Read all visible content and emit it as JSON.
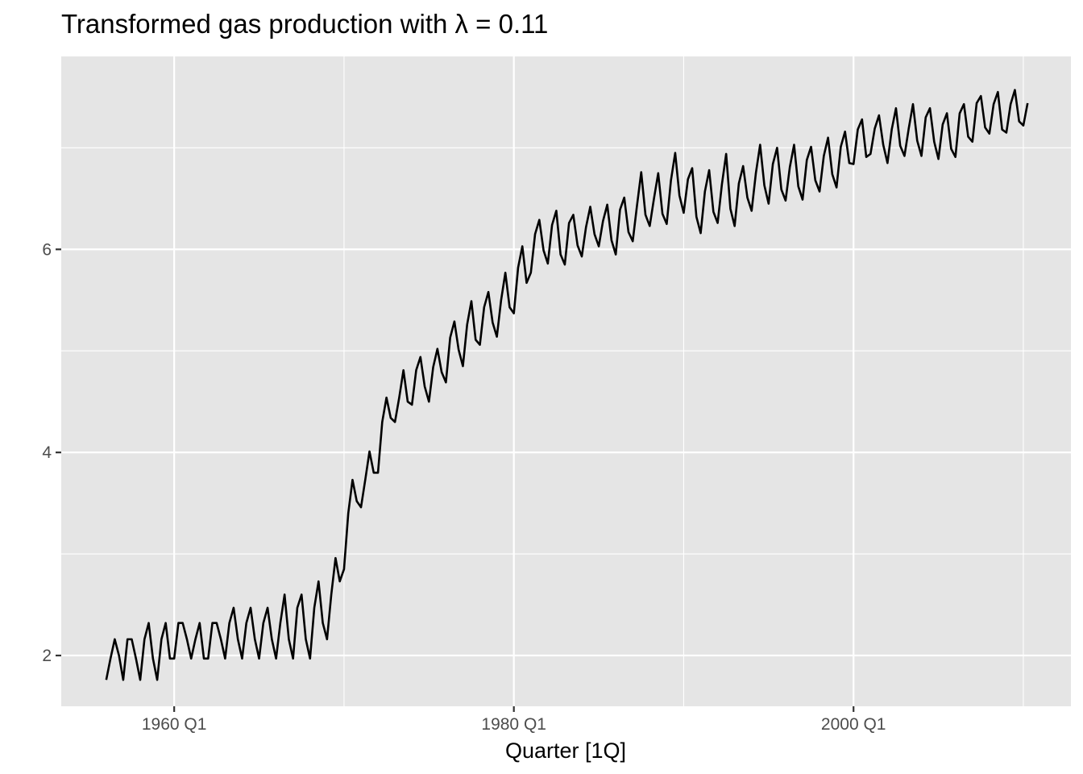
{
  "chart_data": {
    "type": "line",
    "title": "Transformed gas production with λ = 0.11",
    "xlabel": "Quarter [1Q]",
    "ylabel": "",
    "x_start": 1956.0,
    "x_step": 0.25,
    "xlim": [
      1953.35,
      2012.8
    ],
    "ylim": [
      1.5,
      7.9
    ],
    "x_major_ticks": [
      1960,
      1980,
      2000
    ],
    "x_tick_labels": [
      "1960 Q1",
      "1980 Q1",
      "2000 Q1"
    ],
    "x_minor_ticks": [
      1970,
      1990,
      2010
    ],
    "y_major_ticks": [
      2,
      4,
      6
    ],
    "y_tick_labels": [
      "2",
      "4",
      "6"
    ],
    "y_minor_ticks": [
      3,
      5,
      7
    ],
    "grid": true,
    "legend": "none",
    "colors": {
      "panel": "#e5e5e5",
      "grid": "#ffffff",
      "line": "#000000",
      "tick_text": "#4d4d4d"
    },
    "series": [
      {
        "values": [
          1.76,
          1.97,
          2.16,
          2.0,
          1.76,
          2.16,
          2.16,
          1.97,
          1.76,
          2.16,
          2.32,
          1.97,
          1.76,
          2.16,
          2.32,
          1.97,
          1.97,
          2.32,
          2.32,
          2.16,
          1.97,
          2.16,
          2.32,
          1.97,
          1.97,
          2.32,
          2.32,
          2.16,
          1.97,
          2.32,
          2.47,
          2.16,
          1.97,
          2.32,
          2.47,
          2.16,
          1.97,
          2.32,
          2.47,
          2.16,
          1.97,
          2.32,
          2.6,
          2.16,
          1.97,
          2.47,
          2.6,
          2.16,
          1.97,
          2.47,
          2.73,
          2.32,
          2.16,
          2.6,
          2.96,
          2.73,
          2.85,
          3.4,
          3.73,
          3.52,
          3.46,
          3.73,
          4.01,
          3.8,
          3.8,
          4.3,
          4.54,
          4.34,
          4.3,
          4.54,
          4.81,
          4.5,
          4.47,
          4.81,
          4.94,
          4.65,
          4.5,
          4.84,
          5.02,
          4.79,
          4.69,
          5.13,
          5.29,
          5.01,
          4.85,
          5.26,
          5.49,
          5.11,
          5.06,
          5.43,
          5.58,
          5.28,
          5.14,
          5.5,
          5.77,
          5.43,
          5.37,
          5.82,
          6.03,
          5.67,
          5.77,
          6.15,
          6.29,
          5.99,
          5.86,
          6.24,
          6.38,
          5.95,
          5.85,
          6.26,
          6.34,
          6.04,
          5.93,
          6.22,
          6.42,
          6.15,
          6.03,
          6.28,
          6.44,
          6.09,
          5.95,
          6.39,
          6.51,
          6.17,
          6.08,
          6.43,
          6.76,
          6.34,
          6.23,
          6.5,
          6.75,
          6.35,
          6.25,
          6.68,
          6.95,
          6.53,
          6.36,
          6.69,
          6.8,
          6.32,
          6.16,
          6.57,
          6.78,
          6.37,
          6.26,
          6.64,
          6.94,
          6.4,
          6.23,
          6.65,
          6.82,
          6.51,
          6.38,
          6.75,
          7.03,
          6.63,
          6.45,
          6.84,
          7.0,
          6.59,
          6.48,
          6.81,
          7.03,
          6.62,
          6.49,
          6.88,
          7.01,
          6.68,
          6.57,
          6.92,
          7.1,
          6.74,
          6.61,
          7.01,
          7.16,
          6.85,
          6.84,
          7.18,
          7.28,
          6.91,
          6.94,
          7.19,
          7.32,
          7.03,
          6.85,
          7.18,
          7.39,
          7.02,
          6.92,
          7.19,
          7.43,
          7.07,
          6.92,
          7.3,
          7.39,
          7.06,
          6.89,
          7.23,
          7.34,
          6.99,
          6.91,
          7.34,
          7.43,
          7.11,
          7.06,
          7.44,
          7.51,
          7.2,
          7.14,
          7.43,
          7.55,
          7.18,
          7.15,
          7.43,
          7.57,
          7.26,
          7.22,
          7.44
        ]
      }
    ]
  }
}
